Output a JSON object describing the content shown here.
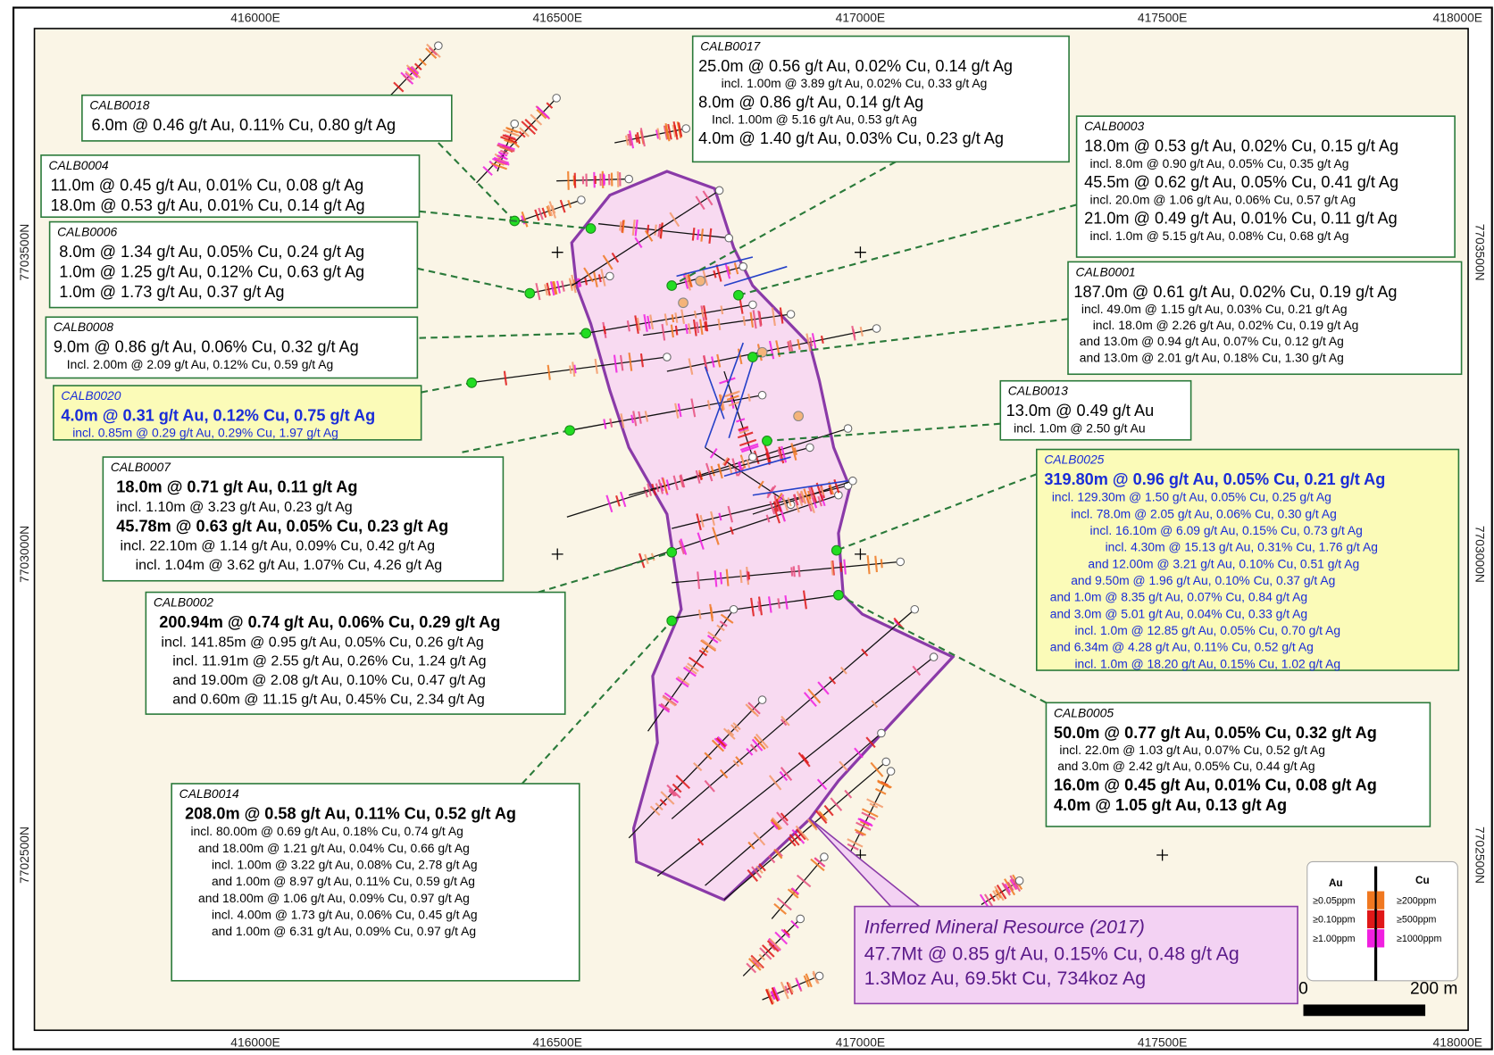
{
  "map": {
    "eastings": [
      "416000E",
      "416500E",
      "417000E",
      "417500E",
      "418000E"
    ],
    "northings": [
      "7703500N",
      "7703000N",
      "7702500N"
    ]
  },
  "callouts": [
    {
      "id": "CALB0017",
      "lines": [
        {
          "text": "25.0m @ 0.56 g/t Au, 0.02% Cu, 0.14 g/t Ag",
          "size": "large"
        },
        {
          "text": "incl. 1.00m @ 3.89 g/t Au, 0.02% Cu, 0.33 g/t Ag",
          "size": "small"
        },
        {
          "text": "8.0m @ 0.86 g/t Au, 0.14 g/t Ag",
          "size": "large"
        },
        {
          "text": "Incl. 1.00m @ 5.16 g/t Au, 0.53 g/t Ag",
          "size": "small"
        },
        {
          "text": "4.0m @ 1.40 g/t Au, 0.03% Cu, 0.23 g/t Ag",
          "size": "large"
        }
      ]
    },
    {
      "id": "CALB0018",
      "lines": [
        {
          "text": "6.0m @ 0.46 g/t Au, 0.11% Cu, 0.80 g/t Ag",
          "size": "large"
        }
      ]
    },
    {
      "id": "CALB0004",
      "lines": [
        {
          "text": "11.0m @ 0.45 g/t Au, 0.01% Cu, 0.08 g/t Ag",
          "size": "large"
        },
        {
          "text": "18.0m @ 0.53 g/t Au, 0.01% Cu, 0.14 g/t Ag",
          "size": "large"
        }
      ]
    },
    {
      "id": "CALB0006",
      "lines": [
        {
          "text": "8.0m @ 1.34 g/t Au, 0.05% Cu, 0.24 g/t Ag",
          "size": "large"
        },
        {
          "text": "1.0m @ 1.25 g/t Au, 0.12% Cu, 0.63 g/t Ag",
          "size": "large"
        },
        {
          "text": "1.0m @ 1.73 g/t Au, 0.37 g/t Ag",
          "size": "large"
        }
      ]
    },
    {
      "id": "CALB0008",
      "lines": [
        {
          "text": "9.0m @ 0.86 g/t Au, 0.06% Cu, 0.32 g/t Ag",
          "size": "large"
        },
        {
          "text": "Incl. 2.00m @ 2.09 g/t Au, 0.12% Cu, 0.59 g/t Ag",
          "size": "small"
        }
      ]
    },
    {
      "id": "CALB0020",
      "highlight": true,
      "lines": [
        {
          "text": "4.0m @ 0.31 g/t Au, 0.12% Cu, 0.75 g/t Ag",
          "size": "large",
          "bold": true
        },
        {
          "text": "incl. 0.85m @ 0.29 g/t Au, 0.29% Cu, 1.97 g/t Ag",
          "size": "small"
        }
      ]
    },
    {
      "id": "CALB0007",
      "lines": [
        {
          "text": "18.0m @ 0.71 g/t Au, 0.11 g/t Ag",
          "size": "large",
          "bold": true
        },
        {
          "text": "incl. 1.10m @ 3.23 g/t Au, 0.23 g/t Ag",
          "size": "medium"
        },
        {
          "text": "45.78m @ 0.63 g/t Au, 0.05% Cu, 0.23 g/t Ag",
          "size": "large",
          "bold": true
        },
        {
          "text": "incl. 22.10m @ 1.14 g/t Au, 0.09% Cu, 0.42 g/t Ag",
          "size": "medium"
        },
        {
          "text": "incl. 1.04m @ 3.62 g/t Au, 1.07% Cu, 4.26 g/t Ag",
          "size": "medium"
        }
      ]
    },
    {
      "id": "CALB0002",
      "lines": [
        {
          "text": "200.94m @ 0.74 g/t Au, 0.06% Cu, 0.29 g/t Ag",
          "size": "large",
          "bold": true
        },
        {
          "text": "incl. 141.85m @ 0.95 g/t Au, 0.05% Cu, 0.26 g/t Ag",
          "size": "medium"
        },
        {
          "text": "incl. 11.91m @ 2.55 g/t Au, 0.26% Cu, 1.24 g/t Ag",
          "size": "medium"
        },
        {
          "text": "and 19.00m @ 2.08 g/t Au, 0.10% Cu, 0.47 g/t Ag",
          "size": "medium"
        },
        {
          "text": "and 0.60m @ 11.15 g/t Au, 0.45% Cu, 2.34 g/t Ag",
          "size": "medium"
        }
      ]
    },
    {
      "id": "CALB0014",
      "lines": [
        {
          "text": "208.0m @ 0.58 g/t Au, 0.11% Cu, 0.52 g/t Ag",
          "size": "large",
          "bold": true
        },
        {
          "text": "incl. 80.00m @ 0.69 g/t Au, 0.18% Cu, 0.74 g/t Ag",
          "size": "small"
        },
        {
          "text": "and 18.00m @ 1.21 g/t Au, 0.04% Cu, 0.66 g/t Ag",
          "size": "small"
        },
        {
          "text": "incl. 1.00m @ 3.22 g/t Au, 0.08% Cu, 2.78 g/t Ag",
          "size": "small"
        },
        {
          "text": "and 1.00m @ 8.97 g/t Au, 0.11% Cu, 0.59 g/t Ag",
          "size": "small"
        },
        {
          "text": "and 18.00m @ 1.06 g/t Au, 0.09% Cu, 0.97 g/t Ag",
          "size": "small"
        },
        {
          "text": "incl. 4.00m @ 1.73 g/t Au, 0.06% Cu, 0.45 g/t Ag",
          "size": "small"
        },
        {
          "text": "and 1.00m @ 6.31 g/t Au, 0.09% Cu, 0.97 g/t Ag",
          "size": "small"
        }
      ]
    },
    {
      "id": "CALB0003",
      "lines": [
        {
          "text": "18.0m @ 0.53 g/t Au, 0.02% Cu, 0.15 g/t Ag",
          "size": "large"
        },
        {
          "text": "incl. 8.0m @ 0.90 g/t Au, 0.05% Cu, 0.35 g/t Ag",
          "size": "small"
        },
        {
          "text": "45.5m @ 0.62 g/t Au, 0.05% Cu, 0.41 g/t Ag",
          "size": "large"
        },
        {
          "text": "incl. 20.0m @ 1.06 g/t Au, 0.06% Cu, 0.57 g/t Ag",
          "size": "small"
        },
        {
          "text": "21.0m @ 0.49 g/t Au, 0.01% Cu, 0.11 g/t Ag",
          "size": "large"
        },
        {
          "text": "incl. 1.0m @ 5.15 g/t Au, 0.08% Cu, 0.68 g/t Ag",
          "size": "small"
        }
      ]
    },
    {
      "id": "CALB0001",
      "lines": [
        {
          "text": "187.0m @ 0.61 g/t Au, 0.02% Cu, 0.19 g/t Ag",
          "size": "large"
        },
        {
          "text": "incl. 49.0m @ 1.15 g/t Au, 0.03% Cu, 0.21 g/t Ag",
          "size": "small"
        },
        {
          "text": "incl. 18.0m @ 2.26 g/t Au, 0.02% Cu, 0.19 g/t Ag",
          "size": "small"
        },
        {
          "text": "and 13.0m @ 0.94 g/t Au, 0.07% Cu, 0.12 g/t Ag",
          "size": "small"
        },
        {
          "text": "and 13.0m @ 2.01 g/t Au, 0.18% Cu, 1.30 g/t Ag",
          "size": "small"
        }
      ]
    },
    {
      "id": "CALB0013",
      "lines": [
        {
          "text": "13.0m @ 0.49 g/t Au",
          "size": "large"
        },
        {
          "text": "incl. 1.0m @ 2.50 g/t Au",
          "size": "small"
        }
      ]
    },
    {
      "id": "CALB0025",
      "highlight": true,
      "lines": [
        {
          "text": "319.80m @ 0.96 g/t Au, 0.05% Cu, 0.21 g/t Ag",
          "size": "large",
          "bold": true
        },
        {
          "text": "incl. 129.30m @ 1.50 g/t Au, 0.05% Cu, 0.25 g/t Ag",
          "size": "small"
        },
        {
          "text": "incl. 78.0m @ 2.05 g/t Au,  0.06% Cu, 0.30 g/t Ag",
          "size": "small"
        },
        {
          "text": "incl. 16.10m @ 6.09 g/t Au, 0.15% Cu, 0.73 g/t Ag",
          "size": "small"
        },
        {
          "text": "incl. 4.30m @ 15.13 g/t Au, 0.31% Cu, 1.76 g/t Ag",
          "size": "small"
        },
        {
          "text": "and 12.00m @ 3.21 g/t Au, 0.10% Cu, 0.51 g/t Ag",
          "size": "small"
        },
        {
          "text": "and 9.50m @ 1.96 g/t Au, 0.10% Cu, 0.37 g/t Ag",
          "size": "small"
        },
        {
          "text": "and 1.0m @ 8.35 g/t Au, 0.07% Cu, 0.84 g/t Ag",
          "size": "small"
        },
        {
          "text": "and 3.0m @ 5.01 g/t Au, 0.04% Cu, 0.33 g/t Ag",
          "size": "small"
        },
        {
          "text": "incl. 1.0m @ 12.85 g/t Au, 0.05% Cu, 0.70 g/t Ag",
          "size": "small"
        },
        {
          "text": "and 6.34m @ 4.28 g/t Au, 0.11% Cu, 0.52 g/t Ag",
          "size": "small"
        },
        {
          "text": "incl. 1.0m @ 18.20 g/t Au, 0.15% Cu, 1.02 g/t Ag",
          "size": "small"
        }
      ]
    },
    {
      "id": "CALB0005",
      "lines": [
        {
          "text": "50.0m @ 0.77 g/t Au, 0.05% Cu, 0.32 g/t Ag",
          "size": "large",
          "bold": true
        },
        {
          "text": "incl. 22.0m @ 1.03 g/t Au, 0.07% Cu, 0.52 g/t Ag",
          "size": "small"
        },
        {
          "text": "and 3.0m @ 2.42 g/t Au, 0.05% Cu, 0.44 g/t Ag",
          "size": "small"
        },
        {
          "text": "16.0m @ 0.45 g/t Au, 0.01% Cu, 0.08 g/t Ag",
          "size": "large",
          "bold": true
        },
        {
          "text": "4.0m @ 1.05 g/t Au, 0.13 g/t Ag",
          "size": "large",
          "bold": true
        }
      ]
    }
  ],
  "resource": {
    "title": "Inferred Mineral Resource (2017)",
    "lines": [
      "47.7Mt @ 0.85 g/t Au, 0.15% Cu, 0.48 g/t Ag",
      "1.3Moz Au, 69.5kt Cu, 734koz Ag"
    ]
  },
  "legend": {
    "au_header": "Au",
    "cu_header": "Cu",
    "rows": [
      {
        "au": "≥0.05ppm",
        "cu": "≥200ppm",
        "color": "#f07820"
      },
      {
        "au": "≥0.10ppm",
        "cu": "≥500ppm",
        "color": "#e01818"
      },
      {
        "au": "≥1.00ppm",
        "cu": "≥1000ppm",
        "color": "#f020e0"
      }
    ]
  },
  "scale_bar": {
    "start": "0",
    "end": "200 m"
  }
}
